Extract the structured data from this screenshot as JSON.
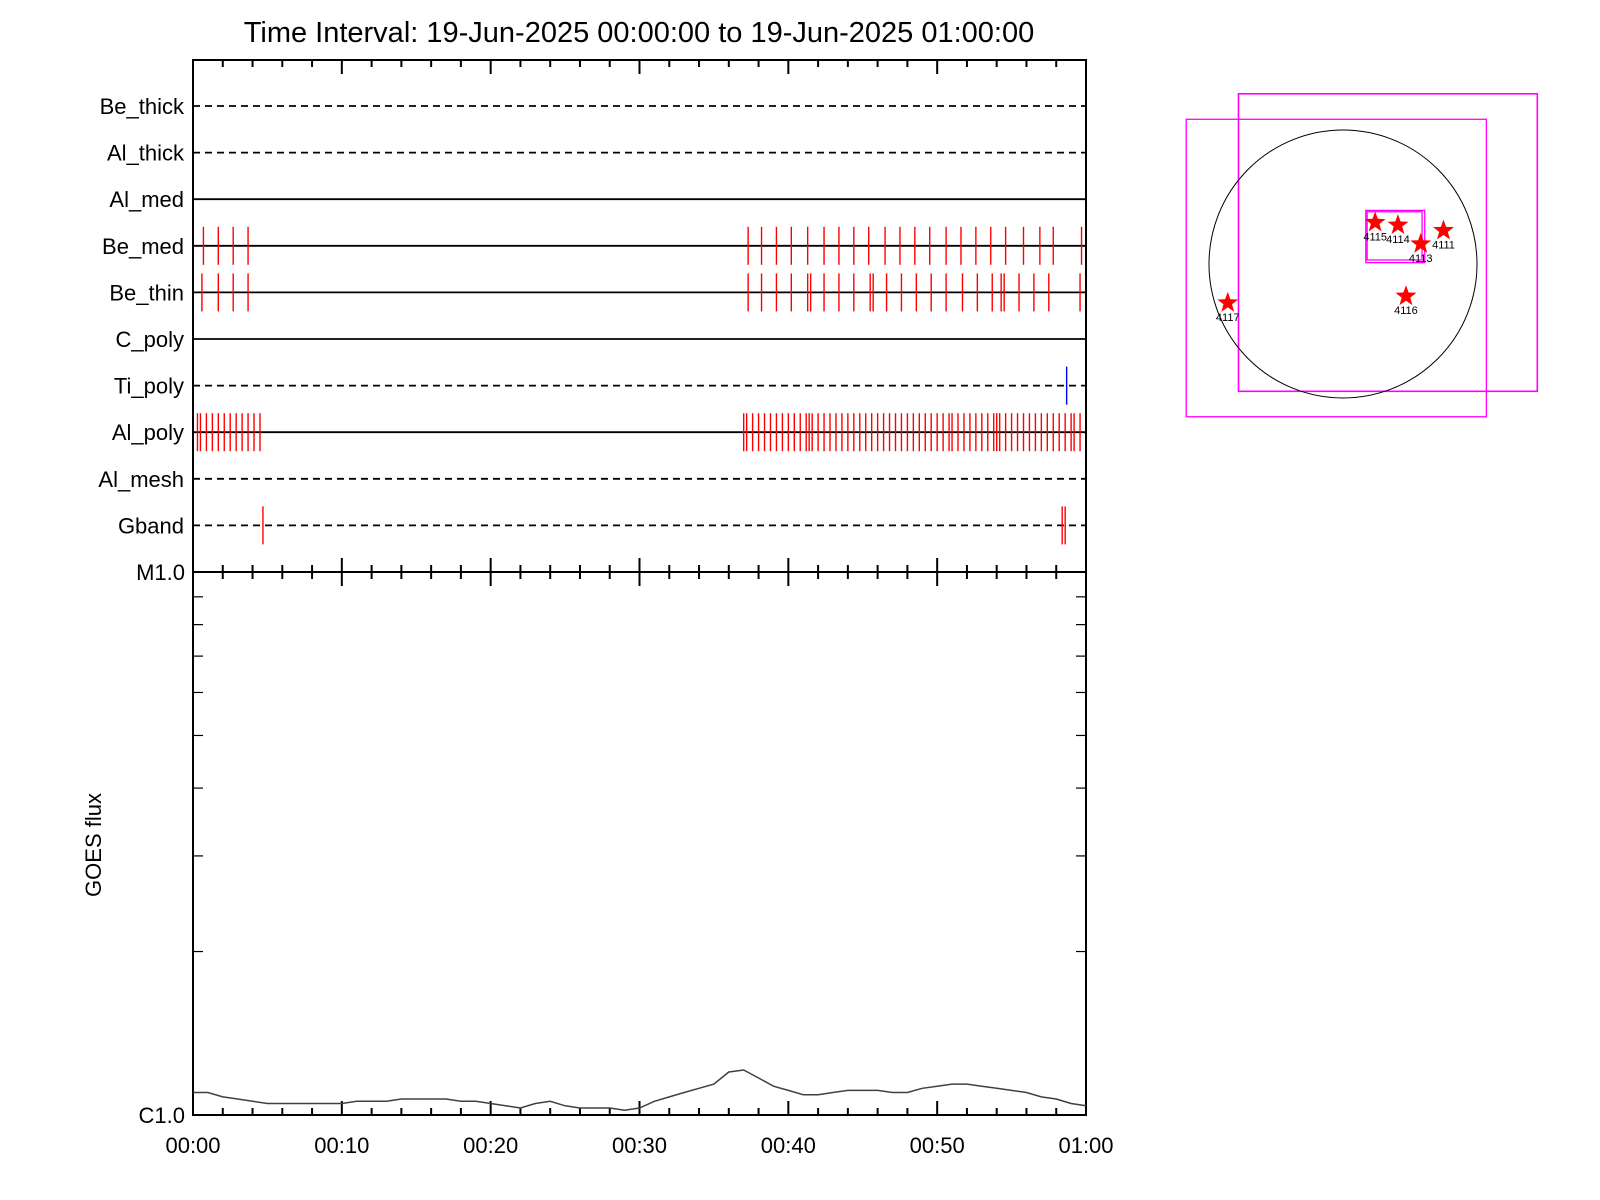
{
  "chart_data": [
    {
      "type": "timeline",
      "title": "Time Interval: 19-Jun-2025 00:00:00 to 19-Jun-2025 01:00:00",
      "x_unit": "minutes",
      "xlim": [
        0,
        60
      ],
      "tick_labels": [
        "00:00",
        "00:10",
        "00:20",
        "00:30",
        "00:40",
        "00:50",
        "01:00"
      ],
      "tick_values": [
        0,
        10,
        20,
        30,
        40,
        50,
        60
      ],
      "channels": [
        {
          "name": "Be_thick",
          "line": "dashed",
          "events": []
        },
        {
          "name": "Al_thick",
          "line": "dashed",
          "events": []
        },
        {
          "name": "Al_med",
          "line": "solid",
          "events": []
        },
        {
          "name": "Be_med",
          "line": "solid",
          "color": "#ff0000",
          "events": [
            0.7,
            1.7,
            2.7,
            3.7,
            37.3,
            38.2,
            39.2,
            40.2,
            41.3,
            42.4,
            43.4,
            44.4,
            45.4,
            46.5,
            47.5,
            48.5,
            49.5,
            50.6,
            51.6,
            52.6,
            53.6,
            54.6,
            55.8,
            56.9,
            57.8,
            59.7
          ]
        },
        {
          "name": "Be_thin",
          "line": "solid",
          "color": "#ff0000",
          "events": [
            0.6,
            1.7,
            2.7,
            3.7,
            37.3,
            38.2,
            39.2,
            40.2,
            41.3,
            41.5,
            42.4,
            43.4,
            44.4,
            45.5,
            45.7,
            46.6,
            47.6,
            48.6,
            49.6,
            50.6,
            51.7,
            52.7,
            53.7,
            54.3,
            54.5,
            55.5,
            56.5,
            57.5,
            59.6
          ]
        },
        {
          "name": "C_poly",
          "line": "solid",
          "events": []
        },
        {
          "name": "Ti_poly",
          "line": "dashed",
          "color": "#0000ff",
          "events": [
            58.7
          ]
        },
        {
          "name": "Al_poly",
          "line": "solid",
          "color": "#ff0000",
          "events": [
            0.3,
            0.5,
            0.9,
            1.3,
            1.7,
            2.1,
            2.5,
            2.9,
            3.3,
            3.7,
            4.1,
            4.5,
            37.0,
            37.2,
            37.6,
            38.0,
            38.4,
            38.8,
            39.2,
            39.6,
            40.0,
            40.4,
            40.8,
            41.2,
            41.4,
            41.6,
            42.0,
            42.4,
            42.8,
            43.2,
            43.6,
            44.0,
            44.4,
            44.8,
            45.2,
            45.6,
            46.0,
            46.4,
            46.8,
            47.2,
            47.6,
            48.0,
            48.4,
            48.8,
            49.2,
            49.6,
            50.0,
            50.4,
            50.8,
            51.0,
            51.4,
            51.8,
            52.2,
            52.6,
            53.0,
            53.4,
            53.8,
            54.0,
            54.2,
            54.6,
            55.0,
            55.4,
            55.8,
            56.2,
            56.6,
            57.0,
            57.4,
            57.8,
            58.2,
            58.6,
            59.0,
            59.2,
            59.6
          ]
        },
        {
          "name": "Al_mesh",
          "line": "dashed",
          "events": []
        },
        {
          "name": "Gband",
          "line": "dashed",
          "color": "#ff0000",
          "events": [
            4.7,
            58.4,
            58.6
          ]
        }
      ]
    },
    {
      "type": "line",
      "ylabel": "GOES flux",
      "x_unit": "minutes",
      "xlim": [
        0,
        60
      ],
      "ytick_labels": [
        "M1.0",
        "C1.0"
      ],
      "ytick_values": [
        1e-05,
        1e-06
      ],
      "ylim": [
        1e-06,
        1e-05
      ],
      "yscale": "log",
      "tick_labels": [
        "00:00",
        "00:10",
        "00:20",
        "00:30",
        "00:40",
        "00:50",
        "01:00"
      ],
      "tick_values": [
        0,
        10,
        20,
        30,
        40,
        50,
        60
      ],
      "series": [
        {
          "color": "#404040",
          "x": [
            0,
            1,
            2,
            3,
            4,
            5,
            6,
            7,
            8,
            9,
            10,
            11,
            12,
            13,
            14,
            15,
            16,
            17,
            18,
            19,
            20,
            21,
            22,
            23,
            24,
            25,
            26,
            27,
            28,
            29,
            30,
            31,
            32,
            33,
            34,
            35,
            36,
            37,
            38,
            39,
            40,
            41,
            42,
            43,
            44,
            45,
            46,
            47,
            48,
            49,
            50,
            51,
            52,
            53,
            54,
            55,
            56,
            57,
            58,
            59,
            60
          ],
          "y": [
            1.1e-06,
            1.1e-06,
            1.08e-06,
            1.07e-06,
            1.06e-06,
            1.05e-06,
            1.05e-06,
            1.05e-06,
            1.05e-06,
            1.05e-06,
            1.05e-06,
            1.06e-06,
            1.06e-06,
            1.06e-06,
            1.07e-06,
            1.07e-06,
            1.07e-06,
            1.07e-06,
            1.06e-06,
            1.06e-06,
            1.05e-06,
            1.04e-06,
            1.03e-06,
            1.05e-06,
            1.06e-06,
            1.04e-06,
            1.03e-06,
            1.03e-06,
            1.03e-06,
            1.02e-06,
            1.03e-06,
            1.06e-06,
            1.08e-06,
            1.1e-06,
            1.12e-06,
            1.14e-06,
            1.2e-06,
            1.21e-06,
            1.17e-06,
            1.13e-06,
            1.11e-06,
            1.09e-06,
            1.09e-06,
            1.1e-06,
            1.11e-06,
            1.11e-06,
            1.11e-06,
            1.1e-06,
            1.1e-06,
            1.12e-06,
            1.13e-06,
            1.14e-06,
            1.14e-06,
            1.13e-06,
            1.12e-06,
            1.11e-06,
            1.1e-06,
            1.08e-06,
            1.07e-06,
            1.05e-06,
            1.04e-06
          ]
        }
      ]
    },
    {
      "type": "scatter",
      "description_free": true,
      "x_unit": "solar-disk-radii",
      "xlim": [
        -1.2,
        1.5
      ],
      "ylim": [
        -1.2,
        1.3
      ],
      "disk": {
        "center": [
          0,
          0
        ],
        "radius": 1.0,
        "color": "#000000"
      },
      "boxes_color": "#ff00ff",
      "boxes": [
        {
          "x0": -1.17,
          "y0": -1.14,
          "x1": 1.07,
          "y1": 1.08
        },
        {
          "x0": -0.78,
          "y0": -0.95,
          "x1": 1.45,
          "y1": 1.27
        },
        {
          "x0": 0.18,
          "y0": 0.03,
          "x1": 0.59,
          "y1": 0.39
        },
        {
          "x0": 0.17,
          "y0": 0.01,
          "x1": 0.61,
          "y1": 0.4
        }
      ],
      "markers_color": "#ff0000",
      "markers": [
        {
          "label": "4111",
          "x": 0.75,
          "y": 0.25
        },
        {
          "label": "4113",
          "x": 0.58,
          "y": 0.15
        },
        {
          "label": "4114",
          "x": 0.41,
          "y": 0.29
        },
        {
          "label": "4115",
          "x": 0.24,
          "y": 0.31
        },
        {
          "label": "4116",
          "x": 0.47,
          "y": -0.24
        },
        {
          "label": "4117",
          "x": -0.86,
          "y": -0.29
        }
      ]
    }
  ]
}
